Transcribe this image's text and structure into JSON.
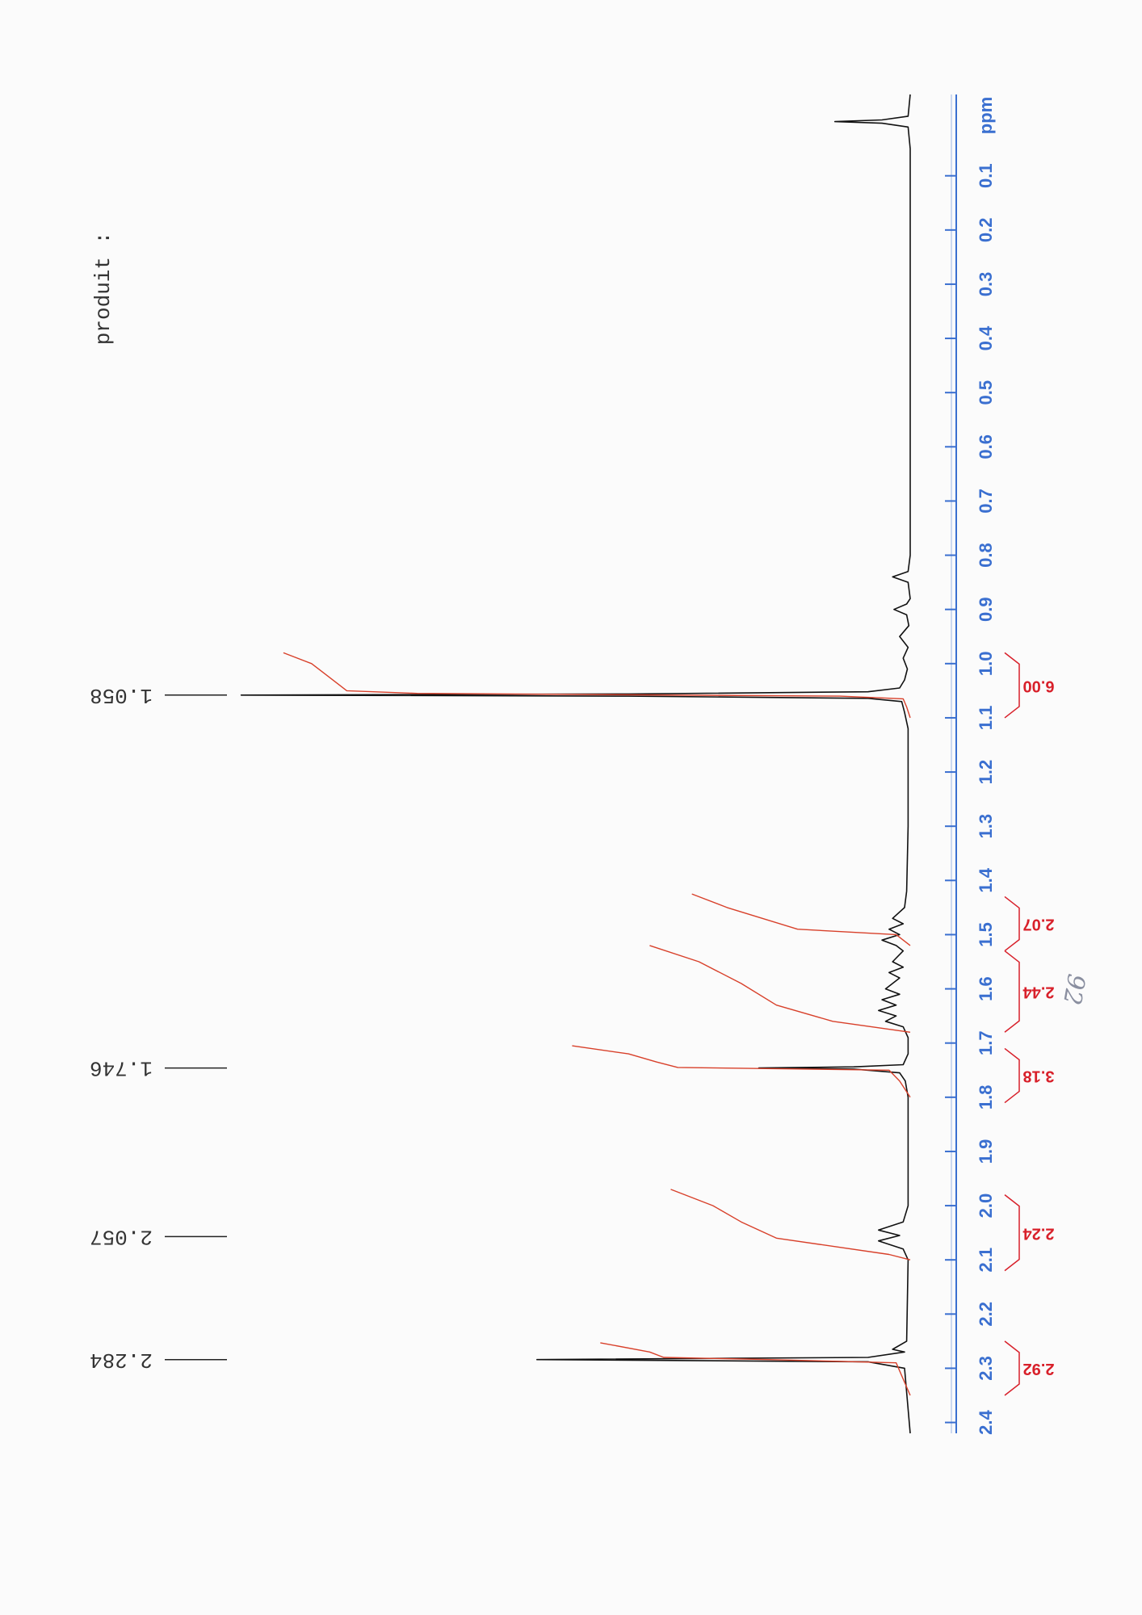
{
  "chart_data": {
    "type": "line",
    "sample_label": "produit :",
    "x_label": "ppm",
    "annotation": "92",
    "xlim": [
      -0.05,
      2.42
    ],
    "xticks": [
      0.1,
      0.2,
      0.3,
      0.4,
      0.5,
      0.6,
      0.7,
      0.8,
      0.9,
      {
        "value": 1,
        "label": "1.0"
      },
      1.1,
      1.2,
      1.3,
      1.4,
      1.5,
      1.6,
      1.7,
      1.8,
      1.9,
      {
        "value": 2,
        "label": "2.0"
      },
      2.1,
      2.2,
      2.3,
      2.4
    ],
    "ylim": [
      0,
      100
    ],
    "peaks": [
      1.058,
      1.746,
      2.057,
      2.284
    ],
    "integrals": {
      "color": "#d8202a",
      "ranges": [
        [
          0.98,
          1.1
        ],
        [
          1.43,
          1.53
        ],
        [
          1.53,
          1.68
        ],
        [
          1.71,
          1.81
        ],
        [
          1.98,
          2.12
        ],
        [
          2.25,
          2.35
        ]
      ],
      "values": [
        6,
        2.07,
        2.44,
        3.18,
        2.24,
        2.92
      ],
      "value_labels": [
        "6.00",
        "2.07",
        "2.44",
        "3.18",
        "2.24",
        "2.92"
      ]
    },
    "series": [
      {
        "color": "#111111",
        "x": [
          -0.05,
          -0.01,
          -0.003,
          0,
          0.003,
          0.01,
          0.05,
          0.8,
          0.83,
          0.84,
          0.85,
          0.88,
          0.89,
          0.9,
          0.91,
          0.93,
          0.95,
          0.97,
          0.99,
          1.01,
          1.03,
          1.045,
          1.052,
          1.056,
          1.058,
          1.06,
          1.064,
          1.07,
          1.09,
          1.12,
          1.3,
          1.42,
          1.45,
          1.47,
          1.48,
          1.49,
          1.5,
          1.51,
          1.52,
          1.53,
          1.55,
          1.56,
          1.57,
          1.58,
          1.6,
          1.61,
          1.62,
          1.63,
          1.64,
          1.65,
          1.66,
          1.67,
          1.69,
          1.72,
          1.74,
          1.744,
          1.746,
          1.748,
          1.755,
          1.77,
          1.8,
          2.0,
          2.03,
          2.045,
          2.055,
          2.065,
          2.08,
          2.1,
          2.25,
          2.265,
          2.27,
          2.28,
          2.284,
          2.288,
          2.3,
          2.42
        ],
        "values": [
          0,
          0.3,
          4,
          10.7,
          4,
          0.3,
          0,
          0,
          0.3,
          2.5,
          0.3,
          0,
          0.5,
          2.3,
          0.5,
          0.2,
          1.5,
          0.3,
          1,
          0.4,
          0.8,
          1.5,
          6,
          40,
          95,
          40,
          6,
          1.2,
          0.8,
          0.3,
          0.3,
          0.5,
          0.8,
          2.5,
          1,
          3,
          1.5,
          4,
          2,
          1,
          2.5,
          1,
          3,
          1.5,
          3.5,
          1.5,
          4,
          2,
          4.5,
          2,
          3.5,
          1,
          0.3,
          0.3,
          1,
          8,
          21.5,
          8,
          1.5,
          0.7,
          0.3,
          0.3,
          1,
          4.5,
          1.5,
          4.5,
          1,
          0.3,
          0.5,
          2.5,
          0.8,
          6,
          53,
          6,
          0.8,
          0
        ]
      },
      {
        "color": "#d8402a",
        "x": [
          0.98,
          1.0,
          1.02,
          1.04,
          1.05,
          1.055,
          1.06,
          1.065,
          1.08,
          1.1
        ],
        "values": [
          89,
          85,
          83,
          81,
          80,
          70,
          10,
          1,
          0.5,
          0
        ]
      },
      {
        "color": "#d8402a",
        "x": [
          1.425,
          1.45,
          1.47,
          1.49,
          1.5,
          1.52
        ],
        "values": [
          31,
          26,
          21,
          16,
          2,
          0
        ]
      },
      {
        "color": "#d8402a",
        "x": [
          1.52,
          1.55,
          1.59,
          1.63,
          1.66,
          1.68
        ],
        "values": [
          37,
          30,
          24,
          19,
          11,
          0
        ]
      },
      {
        "color": "#d8402a",
        "x": [
          1.705,
          1.72,
          1.735,
          1.745,
          1.75,
          1.77,
          1.8
        ],
        "values": [
          48,
          40,
          36,
          33,
          3,
          1.5,
          0
        ]
      },
      {
        "color": "#d8402a",
        "x": [
          1.97,
          2.0,
          2.03,
          2.06,
          2.09,
          2.1
        ],
        "values": [
          34,
          28,
          24,
          19,
          3,
          0
        ]
      },
      {
        "color": "#d8402a",
        "x": [
          2.253,
          2.27,
          2.28,
          2.284,
          2.29,
          2.35
        ],
        "values": [
          44,
          37,
          35,
          20,
          2,
          0
        ]
      }
    ]
  }
}
